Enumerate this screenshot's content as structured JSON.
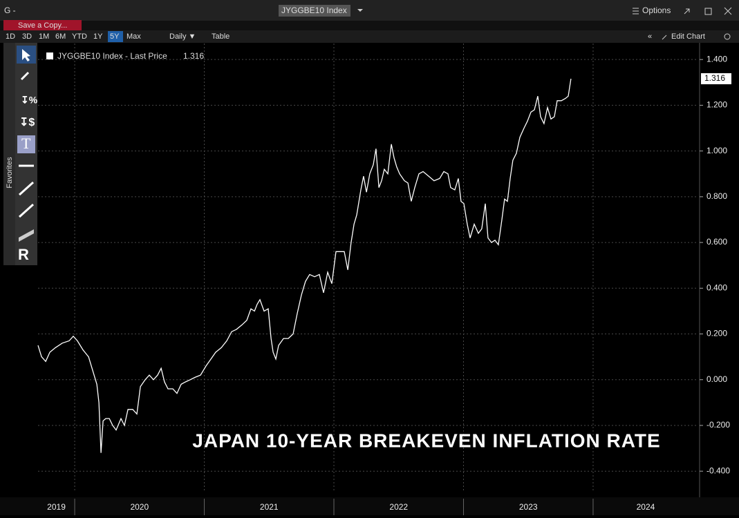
{
  "ui": {
    "window_label": "G -",
    "ticker": "JYGGBE10 Index",
    "options": "Options",
    "save_copy": "Save a Copy...",
    "periods": [
      "1D",
      "3D",
      "1M",
      "6M",
      "YTD",
      "1Y",
      "5Y",
      "Max"
    ],
    "active_period": 6,
    "frequency": "Daily ▼",
    "table": "Table",
    "edit_chart": "Edit Chart",
    "favorites": "Favorites"
  },
  "chart_data": {
    "type": "line",
    "annotation": "JAPAN 10-YEAR BREAKEVEN INFLATION RATE",
    "x": [
      2019.717,
      2019.744,
      2019.776,
      2019.808,
      2019.851,
      2019.904,
      2019.957,
      2019.989,
      2020.021,
      2020.064,
      2020.107,
      2020.144,
      2020.171,
      2020.187,
      2020.203,
      2020.219,
      2020.24,
      2020.267,
      2020.293,
      2020.32,
      2020.357,
      2020.384,
      2020.411,
      2020.448,
      2020.48,
      2020.507,
      2020.544,
      2020.576,
      2020.608,
      2020.64,
      2020.667,
      2020.693,
      2020.72,
      2020.757,
      2020.789,
      2020.821,
      2020.853,
      2020.891,
      2020.928,
      2020.971,
      2021.013,
      2021.051,
      2021.088,
      2021.131,
      2021.173,
      2021.211,
      2021.248,
      2021.291,
      2021.328,
      2021.36,
      2021.387,
      2021.408,
      2021.429,
      2021.461,
      2021.493,
      2021.515,
      2021.531,
      2021.552,
      2021.573,
      2021.611,
      2021.648,
      2021.685,
      2021.717,
      2021.749,
      2021.781,
      2021.813,
      2021.851,
      2021.888,
      2021.92,
      2021.952,
      2021.984,
      2022.016,
      2022.048,
      2022.08,
      2022.107,
      2022.133,
      2022.155,
      2022.176,
      2022.208,
      2022.229,
      2022.251,
      2022.277,
      2022.304,
      2022.325,
      2022.347,
      2022.368,
      2022.389,
      2022.416,
      2022.443,
      2022.464,
      2022.485,
      2022.507,
      2022.544,
      2022.571,
      2022.597,
      2022.624,
      2022.656,
      2022.688,
      2022.731,
      2022.773,
      2022.816,
      2022.848,
      2022.88,
      2022.901,
      2022.933,
      2022.96,
      2022.981,
      2023.003,
      2023.029,
      2023.051,
      2023.083,
      2023.115,
      2023.141,
      2023.168,
      2023.189,
      2023.216,
      2023.243,
      2023.269,
      2023.296,
      2023.317,
      2023.339,
      2023.36,
      2023.381,
      2023.408,
      2023.435,
      2023.467,
      2023.493,
      2023.52,
      2023.547,
      2023.573,
      2023.595,
      2023.621,
      2023.648,
      2023.675,
      2023.701,
      2023.723,
      2023.755,
      2023.787,
      2023.808,
      2023.829
    ],
    "series": [
      {
        "name": "JYGGBE10 Index - Last Price",
        "color": "#ffffff",
        "values": [
          0.15,
          0.1,
          0.08,
          0.12,
          0.14,
          0.16,
          0.17,
          0.19,
          0.17,
          0.13,
          0.1,
          0.03,
          -0.02,
          -0.1,
          -0.32,
          -0.18,
          -0.17,
          -0.17,
          -0.2,
          -0.22,
          -0.17,
          -0.2,
          -0.13,
          -0.13,
          -0.15,
          -0.03,
          0.0,
          0.02,
          0.0,
          0.02,
          0.05,
          -0.01,
          -0.04,
          -0.04,
          -0.06,
          -0.02,
          -0.01,
          0.0,
          0.01,
          0.02,
          0.06,
          0.09,
          0.12,
          0.14,
          0.17,
          0.21,
          0.22,
          0.24,
          0.26,
          0.31,
          0.3,
          0.33,
          0.35,
          0.3,
          0.31,
          0.18,
          0.12,
          0.09,
          0.15,
          0.18,
          0.18,
          0.2,
          0.29,
          0.37,
          0.43,
          0.46,
          0.45,
          0.46,
          0.38,
          0.47,
          0.42,
          0.56,
          0.56,
          0.56,
          0.48,
          0.6,
          0.68,
          0.72,
          0.83,
          0.89,
          0.82,
          0.9,
          0.94,
          1.01,
          0.84,
          0.87,
          0.92,
          0.9,
          1.03,
          0.97,
          0.93,
          0.9,
          0.87,
          0.86,
          0.78,
          0.84,
          0.9,
          0.91,
          0.89,
          0.87,
          0.88,
          0.91,
          0.9,
          0.84,
          0.83,
          0.88,
          0.78,
          0.77,
          0.68,
          0.62,
          0.68,
          0.64,
          0.66,
          0.77,
          0.62,
          0.6,
          0.61,
          0.59,
          0.7,
          0.79,
          0.78,
          0.88,
          0.96,
          0.99,
          1.06,
          1.1,
          1.13,
          1.17,
          1.18,
          1.24,
          1.15,
          1.12,
          1.19,
          1.14,
          1.15,
          1.22,
          1.22,
          1.23,
          1.24,
          1.316
        ]
      }
    ],
    "xlim": [
      2019.717,
      2024.811
    ],
    "xticks": [
      {
        "value": 2019,
        "label": "2019"
      },
      {
        "value": 2020,
        "label": "2020"
      },
      {
        "value": 2021,
        "label": "2021"
      },
      {
        "value": 2022,
        "label": "2022"
      },
      {
        "value": 2023,
        "label": "2023"
      },
      {
        "value": 2024,
        "label": "2024"
      }
    ],
    "ylim": [
      -0.49,
      1.47
    ],
    "yticks": [
      {
        "value": 1.4,
        "label": "1.400"
      },
      {
        "value": 1.2,
        "label": "1.200"
      },
      {
        "value": 1.0,
        "label": "1.000"
      },
      {
        "value": 0.8,
        "label": "0.800"
      },
      {
        "value": 0.6,
        "label": "0.600"
      },
      {
        "value": 0.4,
        "label": "0.400"
      },
      {
        "value": 0.2,
        "label": "0.200"
      },
      {
        "value": 0.0,
        "label": "0.000"
      },
      {
        "value": -0.2,
        "label": "-0.200"
      },
      {
        "value": -0.4,
        "label": "-0.400"
      }
    ],
    "grid": true
  }
}
